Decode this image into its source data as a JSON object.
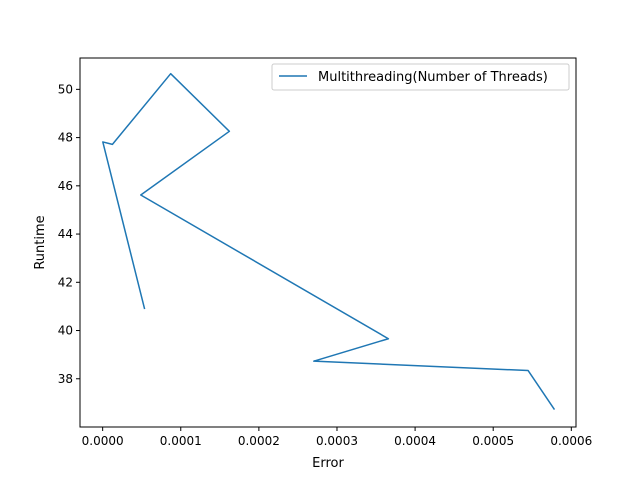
{
  "chart_data": {
    "type": "line",
    "xlabel": "Error",
    "ylabel": "Runtime",
    "xlim": [
      -2.9e-05,
      0.000606
    ],
    "ylim": [
      36.0,
      51.3
    ],
    "x_ticks": [
      0.0,
      0.0001,
      0.0002,
      0.0003,
      0.0004,
      0.0005,
      0.0006
    ],
    "x_tick_labels": [
      "0.0000",
      "0.0001",
      "0.0002",
      "0.0003",
      "0.0004",
      "0.0005",
      "0.0006"
    ],
    "y_ticks": [
      38,
      40,
      42,
      44,
      46,
      48,
      50
    ],
    "y_tick_labels": [
      "38",
      "40",
      "42",
      "44",
      "46",
      "48",
      "50"
    ],
    "grid": false,
    "legend_position": "top-right",
    "series": [
      {
        "name": "Multithreading(Number of Threads)",
        "color": "#1f77b4",
        "x": [
          5.35e-05,
          2e-07,
          1.25e-05,
          8.71e-05,
          0.0001622,
          4.88e-05,
          0.0003658,
          0.0002703,
          0.0005447,
          0.0005779
        ],
        "y": [
          40.92,
          47.82,
          47.72,
          50.65,
          48.26,
          45.62,
          39.66,
          38.73,
          38.34,
          36.75
        ]
      }
    ]
  }
}
